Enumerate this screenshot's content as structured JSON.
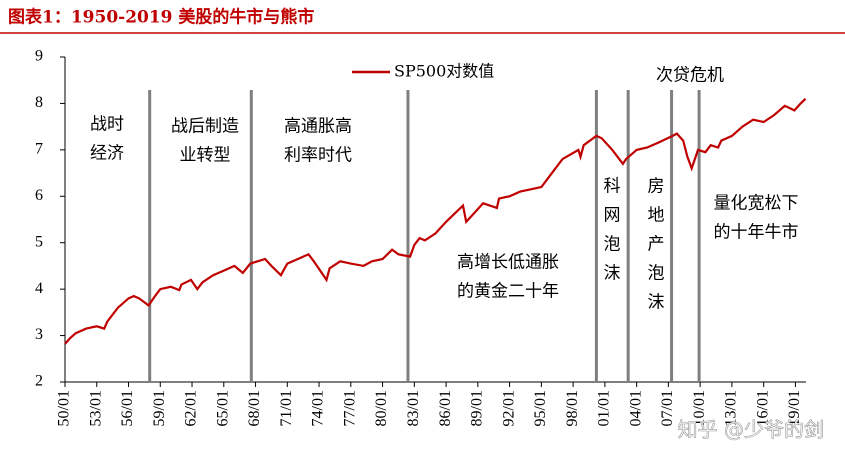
{
  "chart_data": {
    "type": "line",
    "title": "图表1：1950-2019 美股的牛市与熊市",
    "series": [
      {
        "name": "SP500对数值",
        "color": "#c00000",
        "x": [
          1950,
          1950.5,
          1951,
          1952,
          1953,
          1953.7,
          1954,
          1955,
          1956,
          1956.5,
          1957,
          1957.9,
          1958.5,
          1959,
          1960,
          1960.8,
          1961,
          1961.9,
          1962.5,
          1963,
          1964,
          1965,
          1966,
          1966.8,
          1967.5,
          1968.9,
          1969.5,
          1970.4,
          1971,
          1972,
          1973,
          1973.5,
          1974.7,
          1975,
          1976,
          1977,
          1978.2,
          1979,
          1980,
          1980.9,
          1981.5,
          1982.6,
          1983,
          1983.5,
          1984,
          1985,
          1986,
          1987.6,
          1987.9,
          1988.5,
          1989.5,
          1990.8,
          1991,
          1992,
          1993,
          1994,
          1995,
          1996,
          1997,
          1998.5,
          1998.7,
          1999,
          2000.2,
          2000.7,
          2001.7,
          2002.7,
          2003,
          2004,
          2005,
          2006,
          2007.4,
          2007.8,
          2008.4,
          2008.8,
          2009.2,
          2009.8,
          2010.5,
          2011,
          2011.7,
          2012,
          2013,
          2014,
          2015,
          2016,
          2017,
          2018,
          2018.9,
          2019.5,
          2019.95
        ],
        "values": [
          2.82,
          2.95,
          3.05,
          3.15,
          3.2,
          3.15,
          3.3,
          3.6,
          3.8,
          3.85,
          3.8,
          3.65,
          3.85,
          4.0,
          4.05,
          3.98,
          4.1,
          4.2,
          4.0,
          4.15,
          4.3,
          4.4,
          4.5,
          4.35,
          4.55,
          4.65,
          4.5,
          4.3,
          4.55,
          4.65,
          4.75,
          4.6,
          4.2,
          4.45,
          4.6,
          4.55,
          4.5,
          4.6,
          4.65,
          4.85,
          4.75,
          4.7,
          4.95,
          5.1,
          5.05,
          5.2,
          5.45,
          5.8,
          5.45,
          5.6,
          5.85,
          5.75,
          5.95,
          6.0,
          6.1,
          6.15,
          6.2,
          6.5,
          6.8,
          7.0,
          6.85,
          7.1,
          7.3,
          7.25,
          7.0,
          6.7,
          6.8,
          7.0,
          7.05,
          7.15,
          7.3,
          7.35,
          7.2,
          6.85,
          6.6,
          7.0,
          6.95,
          7.1,
          7.05,
          7.2,
          7.3,
          7.5,
          7.65,
          7.6,
          7.75,
          7.95,
          7.85,
          8.0,
          8.1
        ]
      }
    ],
    "xlim": [
      1950,
      2020
    ],
    "xticks": [
      {
        "value": 1950,
        "label": "50/01"
      },
      {
        "value": 1953,
        "label": "53/01"
      },
      {
        "value": 1956,
        "label": "56/01"
      },
      {
        "value": 1959,
        "label": "59/01"
      },
      {
        "value": 1962,
        "label": "62/01"
      },
      {
        "value": 1965,
        "label": "65/01"
      },
      {
        "value": 1968,
        "label": "68/01"
      },
      {
        "value": 1971,
        "label": "71/01"
      },
      {
        "value": 1974,
        "label": "74/01"
      },
      {
        "value": 1977,
        "label": "77/01"
      },
      {
        "value": 1980,
        "label": "80/01"
      },
      {
        "value": 1983,
        "label": "83/01"
      },
      {
        "value": 1986,
        "label": "86/01"
      },
      {
        "value": 1989,
        "label": "89/01"
      },
      {
        "value": 1992,
        "label": "92/01"
      },
      {
        "value": 1995,
        "label": "95/01"
      },
      {
        "value": 1998,
        "label": "98/01"
      },
      {
        "value": 2001,
        "label": "01/01"
      },
      {
        "value": 2004,
        "label": "04/01"
      },
      {
        "value": 2007,
        "label": "07/01"
      },
      {
        "value": 2010,
        "label": "10/01"
      },
      {
        "value": 2013,
        "label": "13/01"
      },
      {
        "value": 2016,
        "label": "16/01"
      },
      {
        "value": 2019,
        "label": "19/01"
      }
    ],
    "ylim": [
      2,
      9
    ],
    "yticks": [
      2,
      3,
      4,
      5,
      6,
      7,
      8,
      9
    ],
    "grid": false,
    "legend": "top",
    "vlines": [
      1958.0,
      1967.6,
      1982.4,
      2000.2,
      2003.2,
      2007.3,
      2009.9
    ],
    "annotations": [
      {
        "lines": [
          "战时",
          "经济"
        ]
      },
      {
        "lines": [
          "战后制造",
          "业转型"
        ]
      },
      {
        "lines": [
          "高通胀高",
          "利率时代"
        ]
      },
      {
        "lines": [
          "高增长低通胀",
          "的黄金二十年"
        ]
      },
      {
        "lines": [
          "科",
          "网",
          "泡",
          "沫"
        ]
      },
      {
        "lines": [
          "房",
          "地",
          "产",
          "泡",
          "沫"
        ]
      },
      {
        "lines": [
          "次贷危机"
        ]
      },
      {
        "lines": [
          "量化宽松下",
          "的十年牛市"
        ]
      }
    ]
  },
  "watermark": "知乎 @少爷的剑"
}
